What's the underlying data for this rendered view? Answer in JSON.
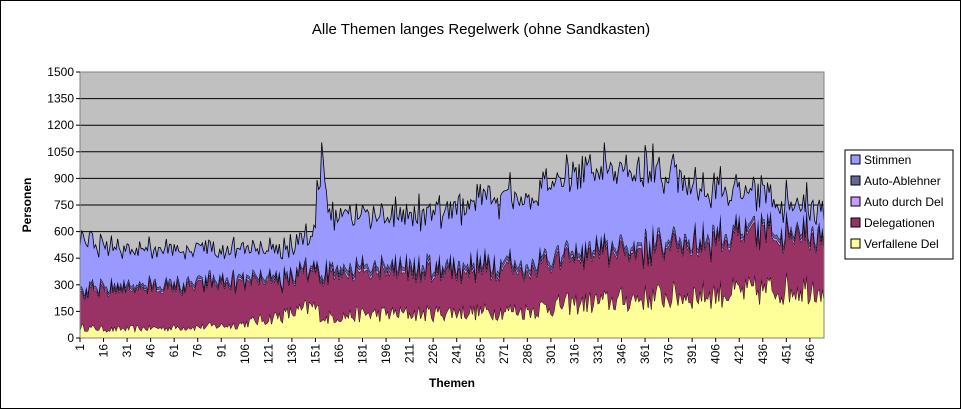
{
  "chart_data": {
    "type": "area",
    "stacked": true,
    "title": "Alle Themen langes Regelwerk (ohne Sandkasten)",
    "xlabel": "Themen",
    "ylabel": "Personen",
    "xlim": [
      1,
      475
    ],
    "ylim": [
      0,
      1500
    ],
    "yticks": [
      0,
      150,
      300,
      450,
      600,
      750,
      900,
      1050,
      1200,
      1350,
      1500
    ],
    "xtick_labels": [
      "1",
      "16",
      "31",
      "46",
      "61",
      "76",
      "91",
      "106",
      "121",
      "136",
      "151",
      "166",
      "181",
      "196",
      "211",
      "226",
      "241",
      "256",
      "271",
      "286",
      "301",
      "316",
      "331",
      "346",
      "361",
      "376",
      "391",
      "406",
      "421",
      "436",
      "451",
      "466"
    ],
    "grid": true,
    "legend_position": "right",
    "x_anchors": [
      1,
      20,
      40,
      60,
      80,
      100,
      120,
      140,
      150,
      156,
      158,
      160,
      180,
      200,
      220,
      240,
      260,
      280,
      281,
      300,
      320,
      340,
      360,
      380,
      400,
      420,
      440,
      460,
      475
    ],
    "series": [
      {
        "name": "Verfallene Del",
        "color": "#FFFF99",
        "values": [
          60,
          50,
          55,
          60,
          65,
          75,
          110,
          150,
          180,
          120,
          110,
          120,
          135,
          140,
          140,
          150,
          150,
          160,
          150,
          180,
          200,
          210,
          230,
          240,
          250,
          260,
          275,
          290,
          300
        ]
      },
      {
        "name": "Delegationen",
        "color": "#993366",
        "values": [
          190,
          220,
          225,
          225,
          235,
          240,
          205,
          190,
          185,
          225,
          245,
          245,
          245,
          245,
          235,
          235,
          245,
          240,
          215,
          250,
          260,
          270,
          280,
          290,
          300,
          310,
          315,
          320,
          300
        ]
      },
      {
        "name": "Auto durch Del",
        "color": "#CC99FF",
        "values": [
          10,
          10,
          10,
          10,
          10,
          10,
          10,
          10,
          10,
          15,
          15,
          15,
          15,
          15,
          15,
          15,
          15,
          15,
          15,
          15,
          15,
          15,
          15,
          15,
          15,
          15,
          15,
          15,
          15
        ]
      },
      {
        "name": "Auto-Ablehner",
        "color": "#666699",
        "values": [
          15,
          15,
          15,
          15,
          15,
          15,
          15,
          15,
          15,
          20,
          20,
          20,
          20,
          20,
          20,
          20,
          20,
          20,
          20,
          20,
          20,
          20,
          20,
          20,
          20,
          20,
          20,
          20,
          20
        ]
      },
      {
        "name": "Stimmen",
        "color": "#9999FF",
        "values": [
          275,
          215,
          195,
          190,
          175,
          160,
          150,
          165,
          165,
          820,
          390,
          290,
          285,
          280,
          300,
          320,
          360,
          370,
          350,
          410,
          440,
          445,
          415,
          355,
          265,
          215,
          175,
          135,
          125
        ]
      }
    ],
    "legend": [
      "Stimmen",
      "Auto-Ablehner",
      "Auto durch Del",
      "Delegationen",
      "Verfallene Del"
    ],
    "plot_background": "#C0C0C0"
  }
}
